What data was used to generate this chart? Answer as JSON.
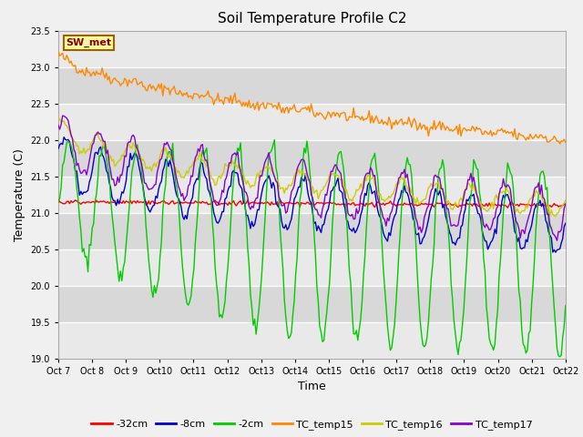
{
  "title": "Soil Temperature Profile C2",
  "xlabel": "Time",
  "ylabel": "Temperature (C)",
  "ylim": [
    19.0,
    23.5
  ],
  "yticks": [
    19.0,
    19.5,
    20.0,
    20.5,
    21.0,
    21.5,
    22.0,
    22.5,
    23.0,
    23.5
  ],
  "fig_bg": "#f0f0f0",
  "plot_bg": "#d8d8d8",
  "annotation_text": "SW_met",
  "annotation_bg": "#ffffa0",
  "annotation_border": "#a06000",
  "annotation_text_color": "#880000",
  "start_day": 7,
  "colors": {
    "32cm": "#ff0000",
    "8cm": "#0000cc",
    "2cm": "#00cc00",
    "TC_temp15": "#ff8800",
    "TC_temp16": "#cccc00",
    "TC_temp17": "#8800cc"
  },
  "legend_labels": [
    "-32cm",
    "-8cm",
    "-2cm",
    "TC_temp15",
    "TC_temp16",
    "TC_temp17"
  ]
}
